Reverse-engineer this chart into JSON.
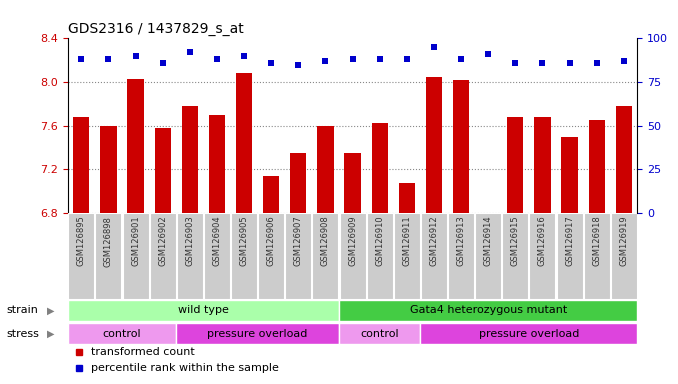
{
  "title": "GDS2316 / 1437829_s_at",
  "samples": [
    "GSM126895",
    "GSM126898",
    "GSM126901",
    "GSM126902",
    "GSM126903",
    "GSM126904",
    "GSM126905",
    "GSM126906",
    "GSM126907",
    "GSM126908",
    "GSM126909",
    "GSM126910",
    "GSM126911",
    "GSM126912",
    "GSM126913",
    "GSM126914",
    "GSM126915",
    "GSM126916",
    "GSM126917",
    "GSM126918",
    "GSM126919"
  ],
  "transformed_count": [
    7.68,
    7.6,
    8.03,
    7.58,
    7.78,
    7.7,
    8.08,
    7.14,
    7.35,
    7.6,
    7.35,
    7.63,
    7.08,
    8.05,
    8.02,
    6.8,
    7.68,
    7.68,
    7.5,
    7.65,
    7.78
  ],
  "percentile_rank": [
    88,
    88,
    90,
    86,
    92,
    88,
    90,
    86,
    85,
    87,
    88,
    88,
    88,
    95,
    88,
    91,
    86,
    86,
    86,
    86,
    87
  ],
  "ylim_left": [
    6.8,
    8.4
  ],
  "ylim_right": [
    0,
    100
  ],
  "yticks_left": [
    6.8,
    7.2,
    7.6,
    8.0,
    8.4
  ],
  "yticks_right": [
    0,
    25,
    50,
    75,
    100
  ],
  "bar_color": "#cc0000",
  "dot_color": "#0000cc",
  "bar_bottom": 6.8,
  "strain_groups": [
    {
      "label": "wild type",
      "start": 0,
      "end": 10,
      "color": "#aaffaa"
    },
    {
      "label": "Gata4 heterozygous mutant",
      "start": 10,
      "end": 21,
      "color": "#44cc44"
    }
  ],
  "stress_groups": [
    {
      "label": "control",
      "start": 0,
      "end": 4,
      "color": "#ee99ee"
    },
    {
      "label": "pressure overload",
      "start": 4,
      "end": 10,
      "color": "#dd44dd"
    },
    {
      "label": "control",
      "start": 10,
      "end": 13,
      "color": "#ee99ee"
    },
    {
      "label": "pressure overload",
      "start": 13,
      "end": 21,
      "color": "#dd44dd"
    }
  ],
  "legend_bar_label": "transformed count",
  "legend_dot_label": "percentile rank within the sample",
  "grid_color": "#888888",
  "bg_color": "#ffffff",
  "tick_label_color_left": "#cc0000",
  "tick_label_color_right": "#0000cc",
  "xlabel_color": "#333333",
  "xtick_bg_color": "#cccccc"
}
